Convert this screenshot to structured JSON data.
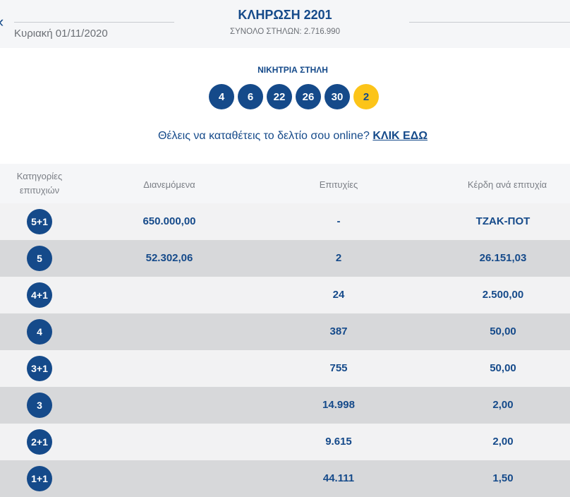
{
  "header": {
    "title": "ΚΛΗΡΩΣΗ 2201",
    "date": "Κυριακή 01/11/2020",
    "total": "ΣΥΝΟΛΟ ΣΤΗΛΩΝ: 2.716.990",
    "back_icon": "chevron-left"
  },
  "winning": {
    "label": "ΝΙΚΗΤΡΙΑ ΣΤΗΛΗ",
    "numbers": [
      "4",
      "6",
      "22",
      "26",
      "30"
    ],
    "joker": "2",
    "colors": {
      "ball": "#154a8a",
      "joker": "#fcc419"
    }
  },
  "cta": {
    "text": "Θέλεις να καταθέτεις το δελτίο σου online? ",
    "link": "ΚΛΙΚ ΕΔΩ"
  },
  "table": {
    "headers": [
      "Κατηγορίες επιτυχιών",
      "Διανεμόμενα",
      "Επιτυχίες",
      "Κέρδη ανά επιτυχία"
    ],
    "rows": [
      {
        "cat": "5+1",
        "dist": "650.000,00",
        "wins": "-",
        "prize": "ΤΖΑΚ-ΠΟΤ"
      },
      {
        "cat": "5",
        "dist": "52.302,06",
        "wins": "2",
        "prize": "26.151,03"
      },
      {
        "cat": "4+1",
        "dist": "",
        "wins": "24",
        "prize": "2.500,00"
      },
      {
        "cat": "4",
        "dist": "",
        "wins": "387",
        "prize": "50,00"
      },
      {
        "cat": "3+1",
        "dist": "",
        "wins": "755",
        "prize": "50,00"
      },
      {
        "cat": "3",
        "dist": "",
        "wins": "14.998",
        "prize": "2,00"
      },
      {
        "cat": "2+1",
        "dist": "",
        "wins": "9.615",
        "prize": "2,00"
      },
      {
        "cat": "1+1",
        "dist": "",
        "wins": "44.111",
        "prize": "1,50"
      }
    ]
  }
}
